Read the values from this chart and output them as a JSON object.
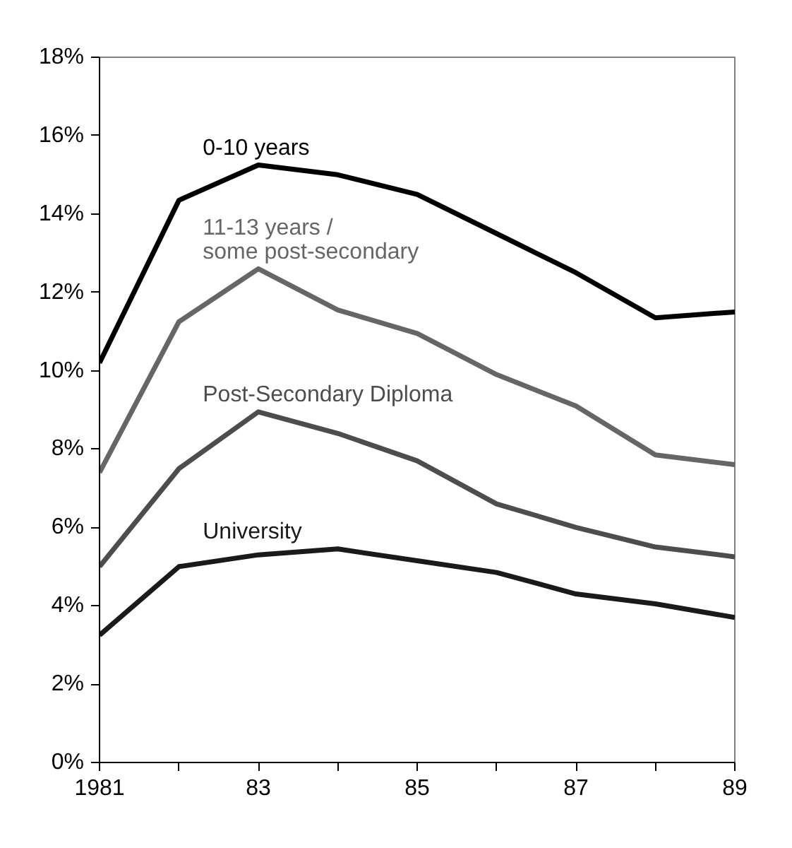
{
  "chart_data": {
    "type": "line",
    "x": [
      1981,
      1982,
      1983,
      1984,
      1985,
      1986,
      1987,
      1988,
      1989
    ],
    "xlim": [
      1981,
      1989
    ],
    "xticks": [
      1981,
      {
        "value": 1982,
        "label": null
      },
      {
        "value": 1983,
        "label": "83"
      },
      {
        "value": 1984,
        "label": null
      },
      {
        "value": 1985,
        "label": "85"
      },
      {
        "value": 1986,
        "label": null
      },
      {
        "value": 1987,
        "label": "87"
      },
      {
        "value": 1988,
        "label": null
      },
      {
        "value": 1989,
        "label": "89"
      }
    ],
    "ylim": [
      0,
      18
    ],
    "yticks": [
      {
        "value": 0,
        "label": "0%"
      },
      {
        "value": 2,
        "label": "2%"
      },
      {
        "value": 4,
        "label": "4%"
      },
      {
        "value": 6,
        "label": "6%"
      },
      {
        "value": 8,
        "label": "8%"
      },
      {
        "value": 10,
        "label": "10%"
      },
      {
        "value": 12,
        "label": "12%"
      },
      {
        "value": 14,
        "label": "14%"
      },
      {
        "value": 16,
        "label": "16%"
      },
      {
        "value": 18,
        "label": "18%"
      }
    ],
    "grid": false,
    "marker": "none",
    "line_style": "solid",
    "series": [
      {
        "name": "0-10 years",
        "color": "#000000",
        "values": [
          10.2,
          14.35,
          15.25,
          15.0,
          14.5,
          13.5,
          12.5,
          11.35,
          11.5
        ]
      },
      {
        "name": "11-13 years /\nsome post-secondary",
        "color": "#666666",
        "values": [
          7.4,
          11.25,
          12.6,
          11.55,
          10.95,
          9.9,
          9.1,
          7.85,
          7.6
        ]
      },
      {
        "name": "Post-Secondary Diploma",
        "color": "#4d4d4d",
        "values": [
          5.0,
          7.5,
          8.95,
          8.4,
          7.7,
          6.6,
          6.0,
          5.5,
          5.25
        ]
      },
      {
        "name": "University",
        "color": "#1a1a1a",
        "values": [
          3.25,
          5.0,
          5.3,
          5.45,
          5.15,
          4.85,
          4.3,
          4.05,
          3.7
        ]
      }
    ]
  }
}
